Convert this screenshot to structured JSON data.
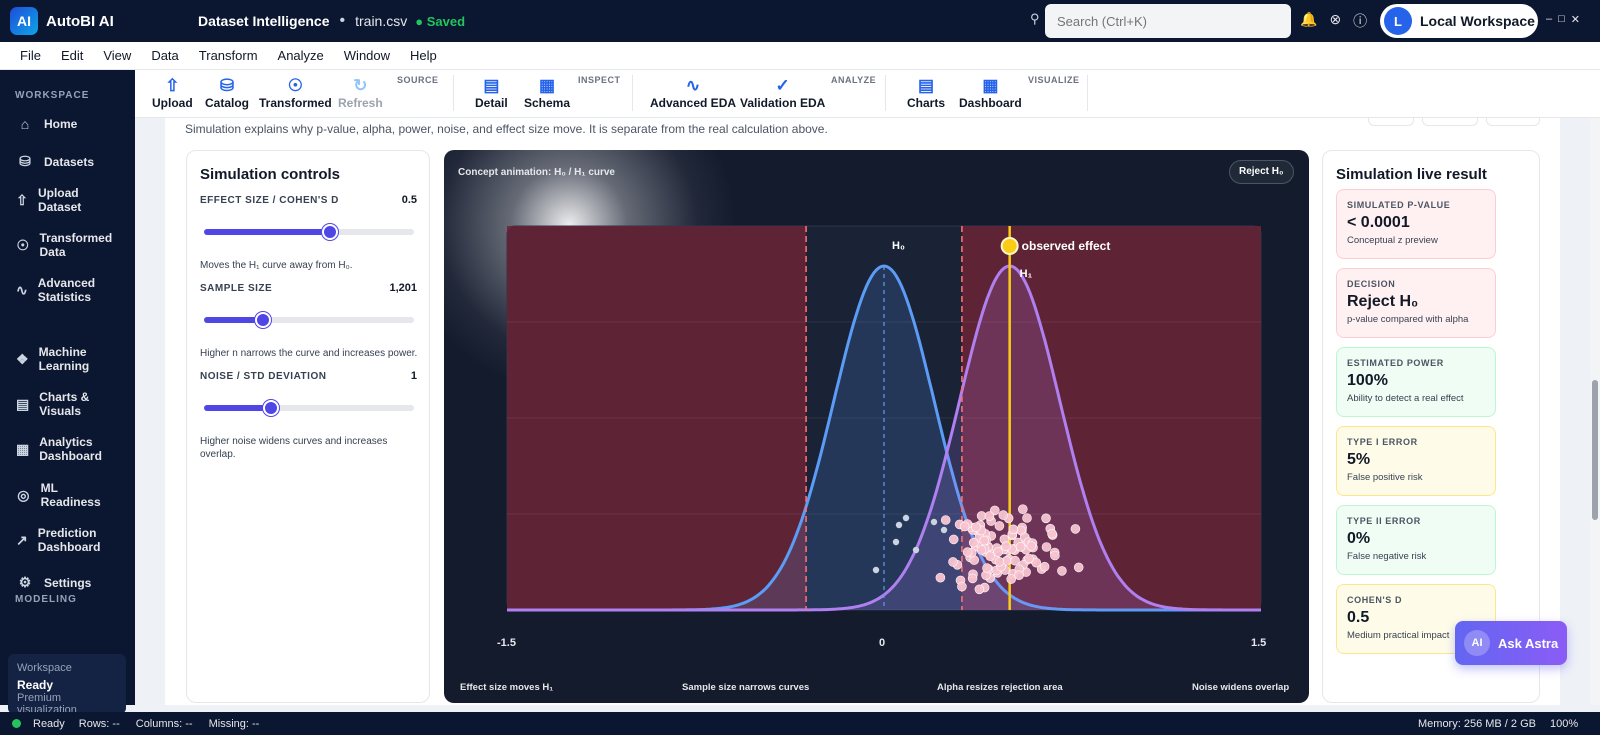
{
  "app": {
    "name": "AutoBI AI",
    "logo_letter": "AI",
    "screen_title": "Dataset Intelligence",
    "file": "train.csv",
    "save_state": "Saved"
  },
  "search": {
    "placeholder": "Search (Ctrl+K)"
  },
  "workspace": {
    "avatar": "L",
    "label": "Local Workspace"
  },
  "menu": [
    "File",
    "Edit",
    "View",
    "Data",
    "Transform",
    "Analyze",
    "Window",
    "Help"
  ],
  "sidebar": {
    "section_workspace": "WORKSPACE",
    "items": [
      {
        "label": "Home",
        "icon": "home-icon"
      },
      {
        "label": "Datasets",
        "icon": "database-icon"
      },
      {
        "label": "Upload Dataset",
        "icon": "upload-icon"
      },
      {
        "label": "Transformed Data",
        "icon": "transform-icon"
      },
      {
        "label": "Advanced Statistics",
        "icon": "pulse-icon"
      },
      {
        "label": "Machine Learning",
        "icon": "brain-icon"
      },
      {
        "label": "Charts & Visuals",
        "icon": "bar-chart-icon"
      },
      {
        "label": "Analytics Dashboard",
        "icon": "dashboard-icon"
      },
      {
        "label": "ML Readiness",
        "icon": "target-icon"
      },
      {
        "label": "Prediction Dashboard",
        "icon": "trend-icon"
      },
      {
        "label": "Settings",
        "icon": "gear-icon"
      }
    ],
    "section_modeling": "MODELING",
    "status_card": {
      "title": "Workspace",
      "value": "Ready",
      "sub": "Premium visualization"
    }
  },
  "ribbon": {
    "groups": {
      "source": "SOURCE",
      "inspect": "INSPECT",
      "analyze": "ANALYZE",
      "visualize": "VISUALIZE"
    },
    "buttons": {
      "upload": "Upload",
      "catalog": "Catalog",
      "transformed": "Transformed",
      "refresh": "Refresh",
      "detail": "Detail",
      "schema": "Schema",
      "advanced_eda": "Advanced EDA",
      "validation_eda": "Validation EDA",
      "charts": "Charts",
      "dashboard": "Dashboard"
    }
  },
  "intro": "Simulation explains why p-value, alpha, power, noise, and effect size move. It is separate from the real calculation above.",
  "controls": {
    "title": "Simulation controls",
    "effect": {
      "label": "EFFECT SIZE / COHEN'S D",
      "value": "0.5",
      "fraction": 0.6,
      "hint": "Moves the H₁ curve away from H₀."
    },
    "sample": {
      "label": "SAMPLE SIZE",
      "value": "1,201",
      "fraction": 0.28,
      "hint": "Higher n narrows the curve and increases power."
    },
    "noise": {
      "label": "NOISE / STD DEVIATION",
      "value": "1",
      "fraction": 0.32,
      "hint": "Higher noise widens curves and increases overlap."
    }
  },
  "chart": {
    "title": "Concept animation: H₀ / H₁ curve",
    "decision_pill": "Reject H₀",
    "h0_label": "H₀",
    "h1_label": "H₁",
    "observed_label": "observed effect",
    "footer": [
      "Effect size moves H₁",
      "Sample size narrows curves",
      "Alpha resizes rejection area",
      "Noise widens overlap"
    ],
    "colors": {
      "h0": "#5b9cf6",
      "h1": "#b07ff0",
      "observed": "#facc15",
      "critical": "#f87171",
      "reject_fill": "#6b2436"
    }
  },
  "chart_data": {
    "type": "line",
    "x_ticks": [
      "-1.5",
      "0",
      "1.5"
    ],
    "xlim": [
      -1.5,
      1.5
    ],
    "series": [
      {
        "name": "H₀",
        "mean": 0.0,
        "sd": 0.2
      },
      {
        "name": "H₁",
        "mean": 0.5,
        "sd": 0.2
      }
    ],
    "critical_values": [
      -0.31,
      0.31
    ],
    "observed_effect": 0.5
  },
  "results": {
    "title": "Simulation live result",
    "cards": [
      {
        "key": "SIMULATED P-VALUE",
        "value": "< 0.0001",
        "sub": "Conceptual z preview",
        "bg": "#fff1f2",
        "border": "#fecdd3"
      },
      {
        "key": "DECISION",
        "value": "Reject H₀",
        "sub": "p-value compared with alpha",
        "bg": "#fff1f2",
        "border": "#fecdd3"
      },
      {
        "key": "ESTIMATED POWER",
        "value": "100%",
        "sub": "Ability to detect a real effect",
        "bg": "#f0fdf4",
        "border": "#bbf7d0"
      },
      {
        "key": "TYPE I ERROR",
        "value": "5%",
        "sub": "False positive risk",
        "bg": "#fefce8",
        "border": "#fde68a"
      },
      {
        "key": "TYPE II ERROR",
        "value": "0%",
        "sub": "False negative risk",
        "bg": "#f0fdf4",
        "border": "#bbf7d0"
      },
      {
        "key": "COHEN'S D",
        "value": "0.5",
        "sub": "Medium practical impact",
        "bg": "#fefce8",
        "border": "#fde68a"
      }
    ]
  },
  "astra": {
    "badge": "AI",
    "label": "Ask Astra"
  },
  "status": {
    "state": "Ready",
    "rows": "Rows: --",
    "columns": "Columns: --",
    "missing": "Missing: --",
    "memory": "Memory: 256 MB / 2 GB",
    "zoom": "100%"
  }
}
